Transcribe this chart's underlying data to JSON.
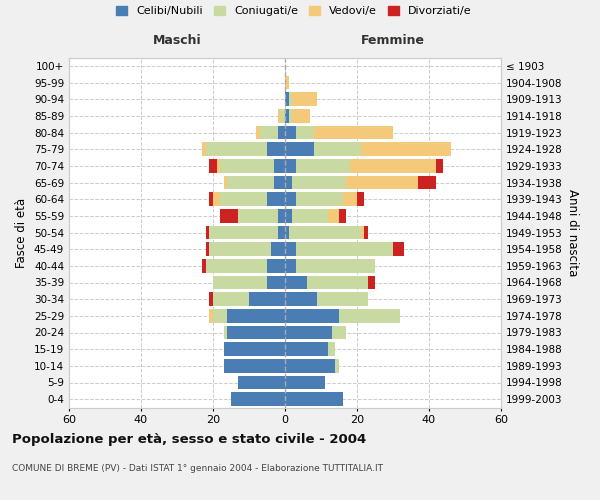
{
  "age_groups": [
    "0-4",
    "5-9",
    "10-14",
    "15-19",
    "20-24",
    "25-29",
    "30-34",
    "35-39",
    "40-44",
    "45-49",
    "50-54",
    "55-59",
    "60-64",
    "65-69",
    "70-74",
    "75-79",
    "80-84",
    "85-89",
    "90-94",
    "95-99",
    "100+"
  ],
  "birth_years": [
    "1999-2003",
    "1994-1998",
    "1989-1993",
    "1984-1988",
    "1979-1983",
    "1974-1978",
    "1969-1973",
    "1964-1968",
    "1959-1963",
    "1954-1958",
    "1949-1953",
    "1944-1948",
    "1939-1943",
    "1934-1938",
    "1929-1933",
    "1924-1928",
    "1919-1923",
    "1914-1918",
    "1909-1913",
    "1904-1908",
    "≤ 1903"
  ],
  "colors": {
    "celibe": "#4a7db4",
    "coniugato": "#c8d9a2",
    "vedovo": "#f5c97a",
    "divorziato": "#cc2222"
  },
  "males": {
    "celibe": [
      15,
      13,
      17,
      17,
      16,
      16,
      10,
      5,
      5,
      4,
      2,
      2,
      5,
      3,
      3,
      5,
      2,
      0,
      0,
      0,
      0
    ],
    "coniugato": [
      0,
      0,
      0,
      0,
      1,
      4,
      10,
      15,
      17,
      17,
      19,
      11,
      13,
      13,
      15,
      17,
      5,
      1,
      0,
      0,
      0
    ],
    "vedovo": [
      0,
      0,
      0,
      0,
      0,
      1,
      0,
      0,
      0,
      0,
      0,
      0,
      2,
      1,
      1,
      1,
      1,
      1,
      0,
      0,
      0
    ],
    "divorziato": [
      0,
      0,
      0,
      0,
      0,
      0,
      1,
      0,
      1,
      1,
      1,
      5,
      1,
      0,
      2,
      0,
      0,
      0,
      0,
      0,
      0
    ]
  },
  "females": {
    "celibe": [
      16,
      11,
      14,
      12,
      13,
      15,
      9,
      6,
      3,
      3,
      1,
      2,
      3,
      2,
      3,
      8,
      3,
      1,
      1,
      0,
      0
    ],
    "coniugato": [
      0,
      0,
      1,
      2,
      4,
      17,
      14,
      17,
      22,
      27,
      20,
      10,
      13,
      15,
      15,
      13,
      5,
      1,
      1,
      0,
      0
    ],
    "vedovo": [
      0,
      0,
      0,
      0,
      0,
      0,
      0,
      0,
      0,
      0,
      1,
      3,
      4,
      20,
      24,
      25,
      22,
      5,
      7,
      1,
      0
    ],
    "divorziato": [
      0,
      0,
      0,
      0,
      0,
      0,
      0,
      2,
      0,
      3,
      1,
      2,
      2,
      5,
      2,
      0,
      0,
      0,
      0,
      0,
      0
    ]
  },
  "title": "Popolazione per età, sesso e stato civile - 2004",
  "subtitle": "COMUNE DI BREME (PV) - Dati ISTAT 1° gennaio 2004 - Elaborazione TUTTITALIA.IT",
  "xlabel_left": "Maschi",
  "xlabel_right": "Femmine",
  "ylabel_left": "Fasce di età",
  "ylabel_right": "Anni di nascita",
  "xlim": 60,
  "legend_labels": [
    "Celibi/Nubili",
    "Coniugati/e",
    "Vedovi/e",
    "Divorziati/e"
  ],
  "bg_color": "#f0f0f0",
  "plot_bg": "#ffffff"
}
